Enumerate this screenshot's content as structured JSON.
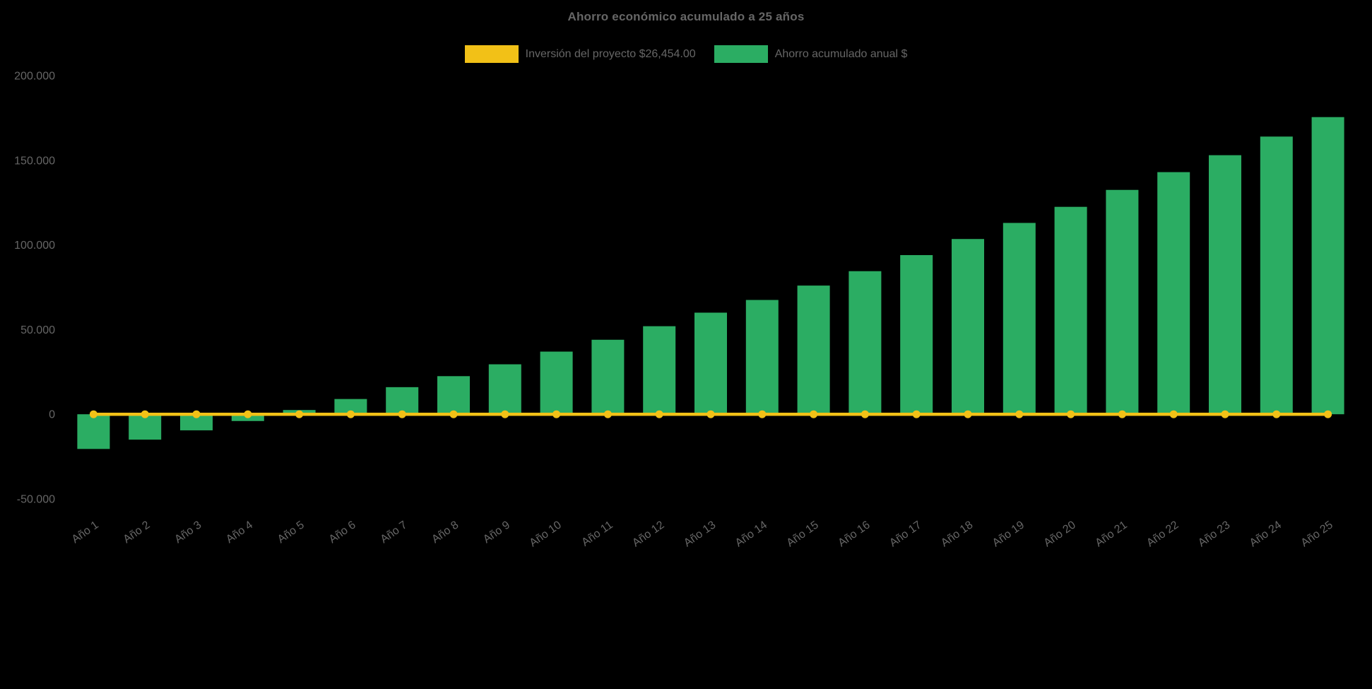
{
  "page": {
    "background": "#000000",
    "text_color": "#666666"
  },
  "chart_data": {
    "type": "bar",
    "title": "Ahorro económico acumulado a 25 años",
    "categories": [
      "Año 1",
      "Año 2",
      "Año 3",
      "Año 4",
      "Año 5",
      "Año 6",
      "Año 7",
      "Año 8",
      "Año 9",
      "Año 10",
      "Año 11",
      "Año 12",
      "Año 13",
      "Año 14",
      "Año 15",
      "Año 16",
      "Año 17",
      "Año 18",
      "Año 19",
      "Año 20",
      "Año 21",
      "Año 22",
      "Año 23",
      "Año 24",
      "Año 25"
    ],
    "series": [
      {
        "name": "Inversión del proyecto $26,454.00",
        "type": "line",
        "color": "#f2c117",
        "values": [
          0,
          0,
          0,
          0,
          0,
          0,
          0,
          0,
          0,
          0,
          0,
          0,
          0,
          0,
          0,
          0,
          0,
          0,
          0,
          0,
          0,
          0,
          0,
          0,
          0
        ]
      },
      {
        "name": "Ahorro acumulado anual $",
        "type": "bar",
        "color": "#2bad63",
        "values": [
          -20500,
          -15000,
          -9500,
          -4000,
          2500,
          9000,
          16000,
          22500,
          29500,
          37000,
          44000,
          52000,
          60000,
          67500,
          76000,
          84500,
          94000,
          103500,
          113000,
          122500,
          132500,
          143000,
          153000,
          164000,
          175500
        ]
      }
    ],
    "ylim": [
      -50000,
      200000
    ],
    "y_ticks": [
      {
        "label": "200.000",
        "value": 200000
      },
      {
        "label": "150.000",
        "value": 150000
      },
      {
        "label": "100.000",
        "value": 100000
      },
      {
        "label": "50.000",
        "value": 50000
      },
      {
        "label": "0",
        "value": 0
      },
      {
        "label": "-50.000",
        "value": -50000
      }
    ],
    "grid": false,
    "legend_position": "top"
  }
}
